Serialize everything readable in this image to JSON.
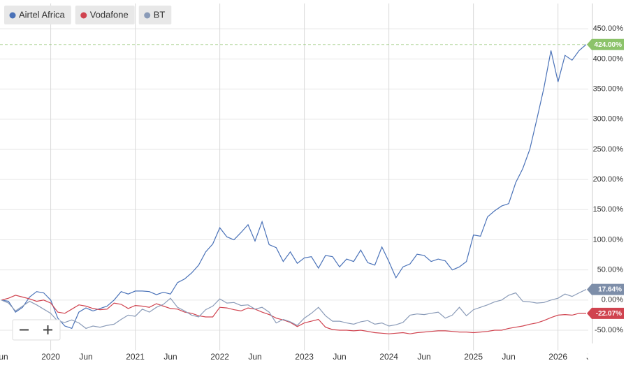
{
  "chart_data": {
    "type": "line",
    "x": [
      "2019-06",
      "2019-07",
      "2019-08",
      "2019-09",
      "2019-10",
      "2019-11",
      "2019-12",
      "2020-01",
      "2020-02",
      "2020-03",
      "2020-04",
      "2020-05",
      "2020-06",
      "2020-07",
      "2020-08",
      "2020-09",
      "2020-10",
      "2020-11",
      "2020-12",
      "2021-01",
      "2021-02",
      "2021-03",
      "2021-04",
      "2021-05",
      "2021-06",
      "2021-07",
      "2021-08",
      "2021-09",
      "2021-10",
      "2021-11",
      "2021-12",
      "2022-01",
      "2022-02",
      "2022-03",
      "2022-04",
      "2022-05",
      "2022-06",
      "2022-07",
      "2022-08",
      "2022-09",
      "2022-10",
      "2022-11",
      "2022-12",
      "2023-01",
      "2023-02",
      "2023-03",
      "2023-04",
      "2023-05",
      "2023-06",
      "2023-07",
      "2023-08",
      "2023-09",
      "2023-10",
      "2023-11",
      "2023-12",
      "2024-01",
      "2024-02",
      "2024-03",
      "2024-04",
      "2024-05",
      "2024-06",
      "2024-07",
      "2024-08",
      "2024-09",
      "2024-10",
      "2024-11",
      "2024-12",
      "2025-01",
      "2025-02",
      "2025-03",
      "2025-04",
      "2025-05",
      "2025-06",
      "2025-07",
      "2025-08",
      "2025-09",
      "2025-10",
      "2025-11",
      "2025-12",
      "2026-01",
      "2026-02",
      "2026-03",
      "2026-04",
      "2026-05"
    ],
    "series": [
      {
        "name": "Airtel Africa",
        "color": "#4a72b8",
        "badge_color": "#8cc36a",
        "values": [
          0,
          -2,
          -20,
          -12,
          5,
          14,
          12,
          0,
          -30,
          -43,
          -47,
          -20,
          -13,
          -18,
          -14,
          -10,
          0,
          14,
          10,
          15,
          15,
          14,
          9,
          13,
          10,
          29,
          35,
          45,
          58,
          80,
          93,
          120,
          105,
          100,
          112,
          125,
          98,
          130,
          92,
          87,
          64,
          80,
          61,
          70,
          72,
          53,
          74,
          72,
          55,
          68,
          64,
          83,
          62,
          58,
          88,
          64,
          37,
          55,
          60,
          76,
          74,
          64,
          68,
          65,
          50,
          55,
          64,
          108,
          106,
          138,
          148,
          156,
          160,
          195,
          218,
          250,
          300,
          352,
          414,
          362,
          406,
          398,
          414,
          424
        ],
        "value_labels": [
          null,
          null,
          null,
          null,
          null,
          null,
          null,
          null,
          null,
          null,
          null,
          null,
          null,
          null,
          null,
          null,
          null,
          null,
          null,
          null,
          null,
          null,
          null,
          null,
          null,
          null,
          null,
          null,
          null,
          null,
          null,
          null,
          null,
          null,
          null,
          null,
          null,
          null,
          null,
          null,
          null,
          null,
          null,
          null,
          null,
          null,
          null,
          null,
          null,
          null,
          null,
          null,
          null,
          null,
          null,
          null,
          null,
          null,
          null,
          null,
          null,
          null,
          null,
          null,
          null,
          null,
          null,
          null,
          null,
          null,
          null,
          null,
          null,
          null,
          null,
          null,
          null,
          null,
          null,
          null,
          null,
          null,
          null,
          "424.00%"
        ]
      },
      {
        "name": "Vodafone",
        "color": "#d0434f",
        "badge_color": "#d0434f",
        "values": [
          0,
          3,
          8,
          5,
          2,
          -2,
          0,
          -5,
          -20,
          -22,
          -15,
          -8,
          -10,
          -14,
          -16,
          -15,
          -5,
          -7,
          -14,
          -9,
          -10,
          -12,
          -6,
          -10,
          -14,
          -15,
          -20,
          -22,
          -26,
          -28,
          -28,
          -12,
          -13,
          -16,
          -18,
          -13,
          -15,
          -20,
          -24,
          -30,
          -33,
          -37,
          -44,
          -38,
          -35,
          -32,
          -45,
          -49,
          -50,
          -50,
          -51,
          -50,
          -52,
          -54,
          -55,
          -56,
          -55,
          -54,
          -56,
          -54,
          -53,
          -52,
          -51,
          -51,
          -52,
          -53,
          -53,
          -54,
          -53,
          -52,
          -50,
          -50,
          -47,
          -45,
          -43,
          -40,
          -38,
          -34,
          -29,
          -25,
          -24,
          -25,
          -22,
          -22.07
        ],
        "value_labels": [
          null,
          null,
          null,
          null,
          null,
          null,
          null,
          null,
          null,
          null,
          null,
          null,
          null,
          null,
          null,
          null,
          null,
          null,
          null,
          null,
          null,
          null,
          null,
          null,
          null,
          null,
          null,
          null,
          null,
          null,
          null,
          null,
          null,
          null,
          null,
          null,
          null,
          null,
          null,
          null,
          null,
          null,
          null,
          null,
          null,
          null,
          null,
          null,
          null,
          null,
          null,
          null,
          null,
          null,
          null,
          null,
          null,
          null,
          null,
          null,
          null,
          null,
          null,
          null,
          null,
          null,
          null,
          null,
          null,
          null,
          null,
          null,
          null,
          null,
          null,
          null,
          null,
          null,
          null,
          null,
          null,
          null,
          null,
          "-22.07%"
        ]
      },
      {
        "name": "BT",
        "color": "#8a9bb8",
        "badge_color": "#7d8ea9",
        "values": [
          0,
          -5,
          -18,
          -10,
          -2,
          -8,
          -15,
          -22,
          -35,
          -37,
          -33,
          -38,
          -47,
          -43,
          -45,
          -42,
          -40,
          -32,
          -25,
          -27,
          -15,
          -20,
          -12,
          -7,
          3,
          -12,
          -18,
          -25,
          -28,
          -16,
          -10,
          2,
          -5,
          -4,
          -9,
          -8,
          -15,
          -12,
          -20,
          -38,
          -32,
          -36,
          -42,
          -30,
          -22,
          -12,
          -26,
          -35,
          -35,
          -38,
          -40,
          -36,
          -34,
          -40,
          -38,
          -43,
          -41,
          -37,
          -25,
          -23,
          -24,
          -22,
          -20,
          -30,
          -25,
          -12,
          -26,
          -16,
          -12,
          -8,
          -3,
          0,
          8,
          12,
          -2,
          -3,
          -5,
          -4,
          0,
          3,
          10,
          6,
          12,
          17.64
        ],
        "value_labels": [
          null,
          null,
          null,
          null,
          null,
          null,
          null,
          null,
          null,
          null,
          null,
          null,
          null,
          null,
          null,
          null,
          null,
          null,
          null,
          null,
          null,
          null,
          null,
          null,
          null,
          null,
          null,
          null,
          null,
          null,
          null,
          null,
          null,
          null,
          null,
          null,
          null,
          null,
          null,
          null,
          null,
          null,
          null,
          null,
          null,
          null,
          null,
          null,
          null,
          null,
          null,
          null,
          null,
          null,
          null,
          null,
          null,
          null,
          null,
          null,
          null,
          null,
          null,
          null,
          null,
          null,
          null,
          null,
          null,
          null,
          null,
          null,
          null,
          null,
          null,
          null,
          null,
          null,
          null,
          null,
          null,
          null,
          null,
          "17.64%"
        ]
      }
    ],
    "xlim": [
      "2019-06",
      "2026-05"
    ],
    "xticks": [
      {
        "value": "2019-06",
        "label": "Jun"
      },
      {
        "value": "2020-01",
        "label": "2020"
      },
      {
        "value": "2020-06",
        "label": "Jun"
      },
      {
        "value": "2021-01",
        "label": "2021"
      },
      {
        "value": "2021-06",
        "label": "Jun"
      },
      {
        "value": "2022-01",
        "label": "2022"
      },
      {
        "value": "2022-06",
        "label": "Jun"
      },
      {
        "value": "2023-01",
        "label": "2023"
      },
      {
        "value": "2023-06",
        "label": "Jun"
      },
      {
        "value": "2024-01",
        "label": "2024"
      },
      {
        "value": "2024-06",
        "label": "Jun"
      },
      {
        "value": "2025-01",
        "label": "2025"
      },
      {
        "value": "2025-06",
        "label": "Jun"
      },
      {
        "value": "2026-01",
        "label": "2026"
      },
      {
        "value": "2026-06",
        "label": "Jun"
      }
    ],
    "ylim": [
      -72,
      492
    ],
    "yticks": [
      {
        "value": -50,
        "label": "-50.00%"
      },
      {
        "value": 0,
        "label": "0.00%"
      },
      {
        "value": 50,
        "label": "50.00%"
      },
      {
        "value": 100,
        "label": "100.00%"
      },
      {
        "value": 150,
        "label": "150.00%"
      },
      {
        "value": 200,
        "label": "200.00%"
      },
      {
        "value": 250,
        "label": "250.00%"
      },
      {
        "value": 300,
        "label": "300.00%"
      },
      {
        "value": 350,
        "label": "350.00%"
      },
      {
        "value": 400,
        "label": "400.00%"
      },
      {
        "value": 450,
        "label": "450.00%"
      }
    ],
    "grid": true,
    "legend": "top-left"
  }
}
